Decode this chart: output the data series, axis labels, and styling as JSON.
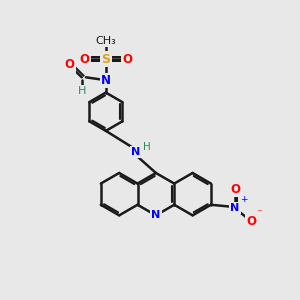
{
  "background_color": "#e8e8e8",
  "bond_color": "#1a1a1a",
  "bond_width": 1.8,
  "N_color": "#0000FF",
  "O_color": "#FF0000",
  "S_color": "#DAA520",
  "H_color": "#2E8B57",
  "C_color": "#1a1a1a",
  "figsize": [
    3.0,
    3.0
  ],
  "dpi": 100,
  "xlim": [
    0,
    10
  ],
  "ylim": [
    0,
    10
  ]
}
